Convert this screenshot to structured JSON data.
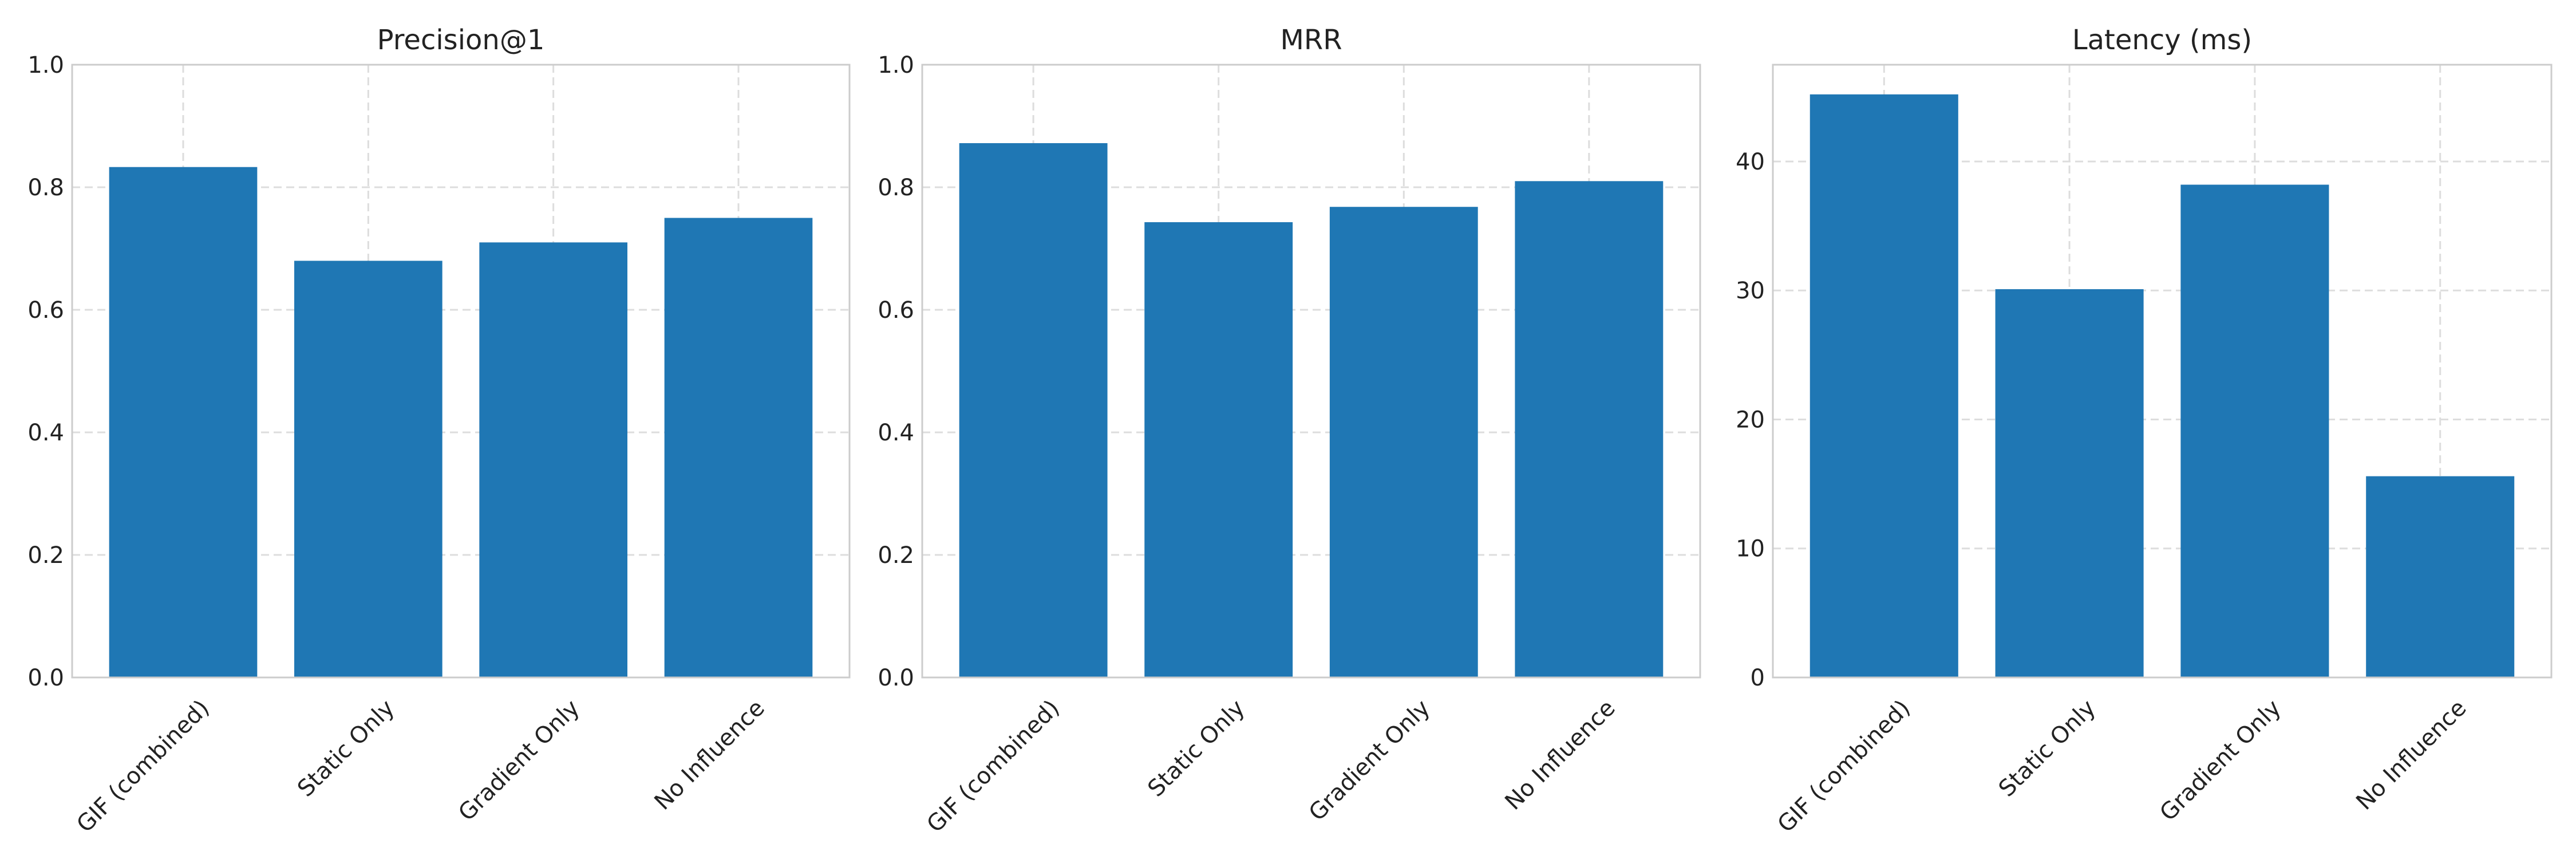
{
  "chart_data": [
    {
      "type": "bar",
      "title": "Precision@1",
      "categories": [
        "GIF (combined)",
        "Static Only",
        "Gradient Only",
        "No Influence"
      ],
      "values": [
        0.833,
        0.68,
        0.71,
        0.75
      ],
      "ylim": [
        0,
        1.0
      ],
      "yticks": [
        "0.0",
        "0.2",
        "0.4",
        "0.6",
        "0.8",
        "1.0"
      ],
      "grid": true,
      "color": "#1f77b4"
    },
    {
      "type": "bar",
      "title": "MRR",
      "categories": [
        "GIF (combined)",
        "Static Only",
        "Gradient Only",
        "No Influence"
      ],
      "values": [
        0.872,
        0.743,
        0.768,
        0.81
      ],
      "ylim": [
        0,
        1.0
      ],
      "yticks": [
        "0.0",
        "0.2",
        "0.4",
        "0.6",
        "0.8",
        "1.0"
      ],
      "grid": true,
      "color": "#1f77b4"
    },
    {
      "type": "bar",
      "title": "Latency (ms)",
      "categories": [
        "GIF (combined)",
        "Static Only",
        "Gradient Only",
        "No Influence"
      ],
      "values": [
        45.2,
        30.1,
        38.2,
        15.6
      ],
      "ylim": [
        0,
        47.5
      ],
      "yticks": [
        "0",
        "10",
        "20",
        "30",
        "40"
      ],
      "grid": true,
      "color": "#1f77b4"
    }
  ]
}
